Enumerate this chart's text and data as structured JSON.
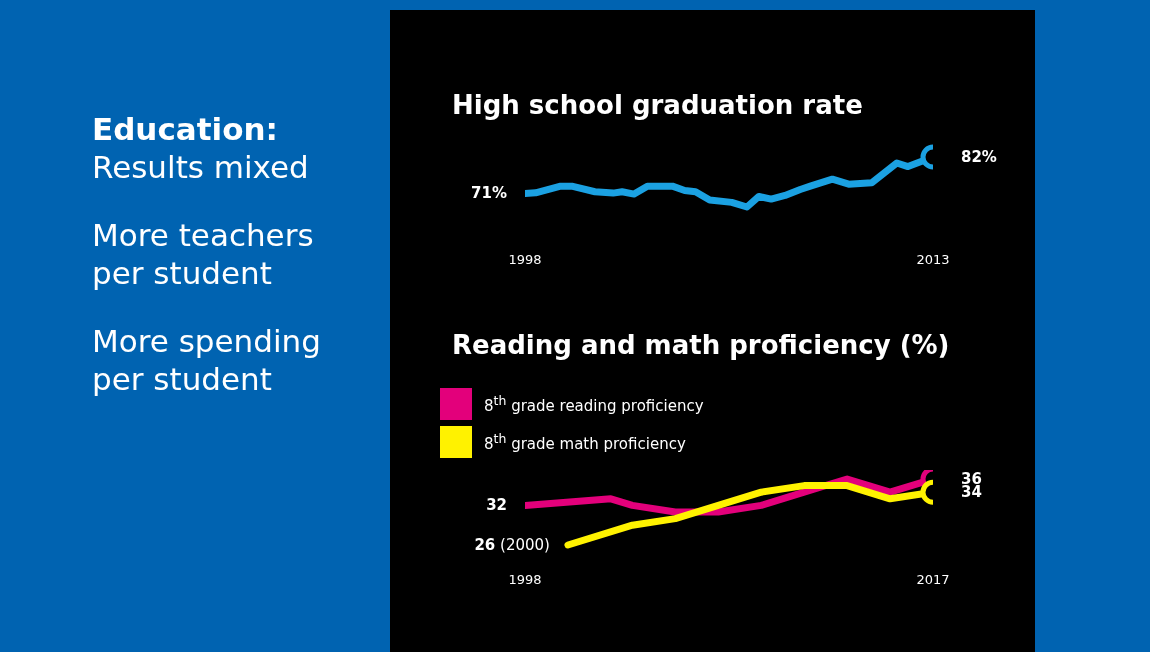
{
  "chart_data": [
    {
      "type": "other",
      "title": "Education:",
      "subtitle": "Results mixed",
      "annotations": [
        "More teachers per student",
        "More spending per student"
      ]
    },
    {
      "type": "line",
      "title": "High school graduation rate",
      "xlim": [
        1998,
        2013
      ],
      "xticks": [
        1998,
        2013
      ],
      "tick_labels": "x",
      "grid": false,
      "legend": false,
      "series": [
        {
          "color": "#1ba1e2",
          "x": [
            1998.0,
            1998.39,
            1999.31,
            1999.72,
            2000.57,
            2001.24,
            2001.57,
            2002.01,
            2002.5,
            2003.42,
            2003.87,
            2004.27,
            2004.79,
            2005.6,
            2006.16,
            2006.6,
            2007.05,
            2007.56,
            2008.12,
            2008.49,
            2009.3,
            2009.9,
            2010.75,
            2011.67,
            2012.08,
            2013.0
          ],
          "values": [
            71,
            71.2,
            73.2,
            73.2,
            71.5,
            71.1,
            71.5,
            70.8,
            73.2,
            73.2,
            71.9,
            71.5,
            69.0,
            68.3,
            66.9,
            70.1,
            69.3,
            70.4,
            72.2,
            73.2,
            75.3,
            73.8,
            74.2,
            80.2,
            79.1,
            82
          ],
          "value_labels": [
            "71%",
            null,
            null,
            null,
            null,
            null,
            null,
            null,
            null,
            null,
            null,
            null,
            null,
            null,
            null,
            null,
            null,
            null,
            null,
            null,
            null,
            null,
            null,
            null,
            null,
            "82%"
          ]
        }
      ]
    },
    {
      "type": "line",
      "title": "Reading and math proficiency (%)",
      "xlim": [
        1998,
        2017
      ],
      "xticks": [
        1998,
        2017
      ],
      "tick_labels": "x",
      "grid": false,
      "legend": "top left",
      "series": [
        {
          "name": "8$^{th}$ grade reading proficiency",
          "color": "#e3007b",
          "x": [
            1998,
            2002,
            2003,
            2005,
            2007,
            2009,
            2011,
            2013,
            2015,
            2017
          ],
          "values": [
            32,
            33,
            32,
            31,
            31,
            32,
            34,
            36,
            34,
            36
          ],
          "value_labels": [
            "32",
            null,
            null,
            null,
            null,
            null,
            null,
            null,
            null,
            "36"
          ]
        },
        {
          "name": "8$^{th}$ grade math proficiency",
          "color": "#fff200",
          "x": [
            2000,
            2003,
            2005,
            2007,
            2009,
            2011,
            2013,
            2015,
            2017
          ],
          "values": [
            26,
            29,
            30,
            32,
            34,
            35,
            35,
            33,
            34
          ],
          "value_labels": [
            "26 (2000)",
            null,
            null,
            null,
            null,
            null,
            null,
            null,
            "34"
          ]
        }
      ]
    }
  ]
}
